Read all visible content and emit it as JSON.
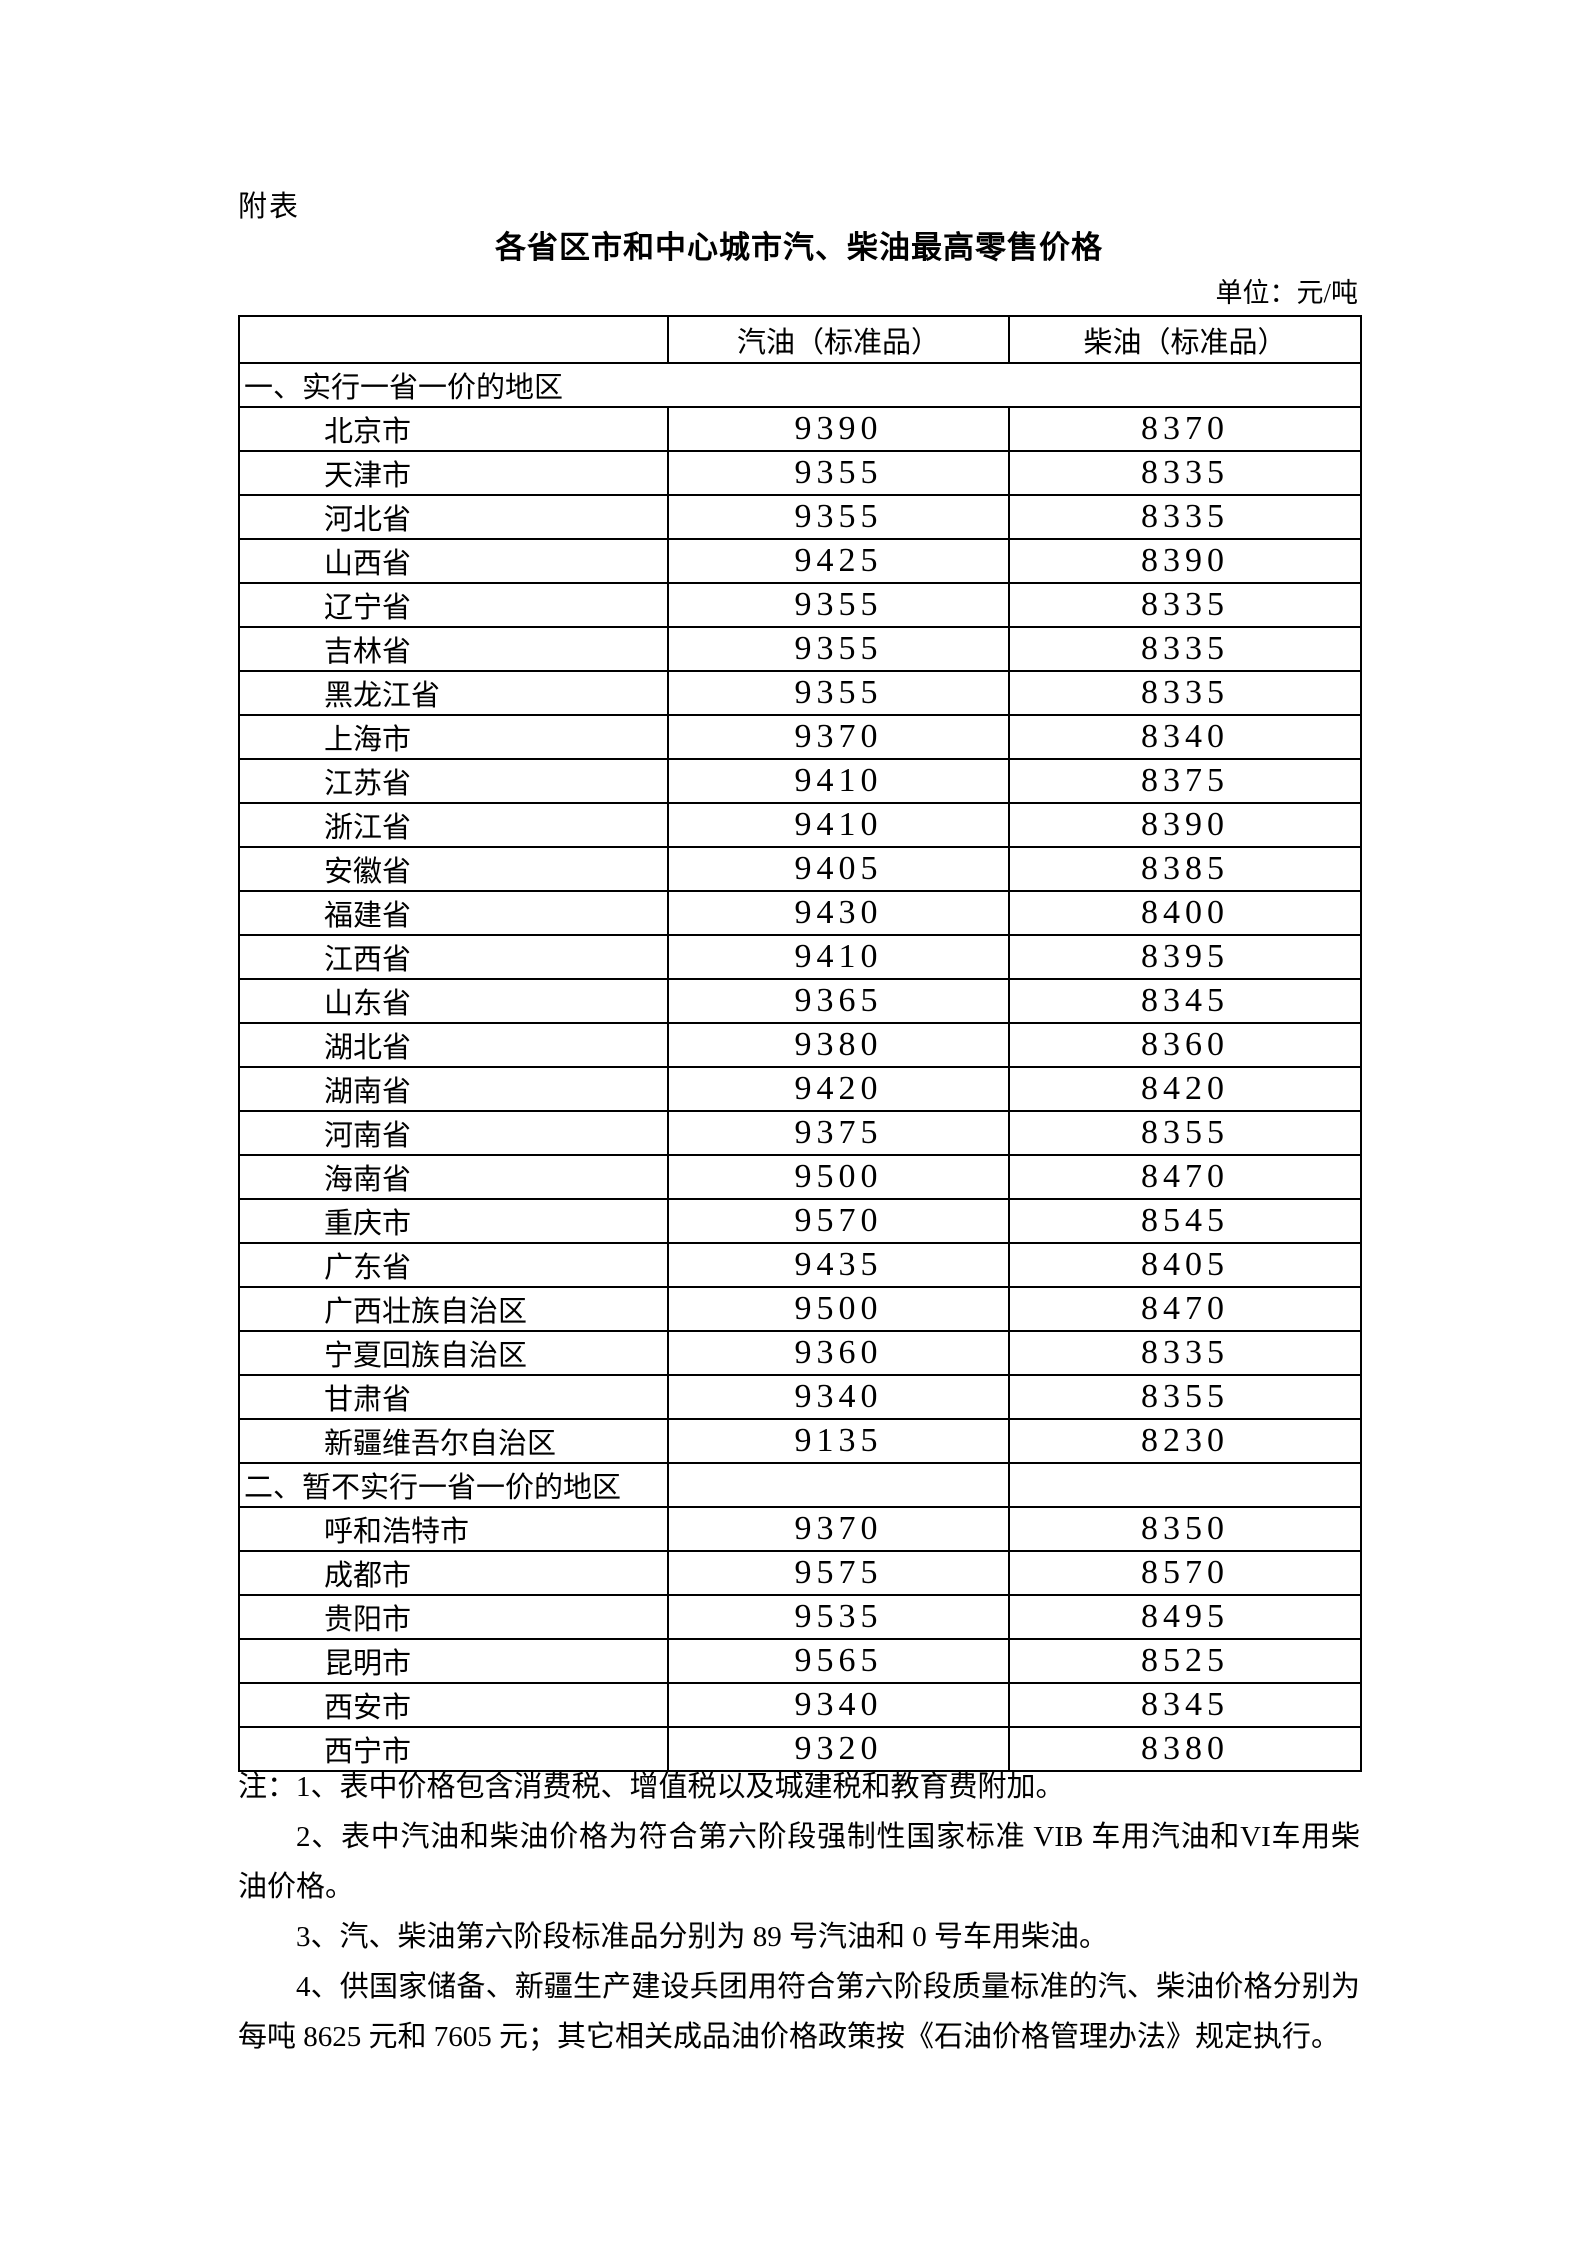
{
  "page": {
    "appendix_label": "附表",
    "title": "各省区市和中心城市汽、柴油最高零售价格",
    "unit_label": "单位：元/吨"
  },
  "table": {
    "columns": [
      "",
      "汽油（标准品）",
      "柴油（标准品）"
    ],
    "sections": [
      {
        "heading": "一、实行一省一价的地区",
        "merged": true,
        "rows": [
          [
            "北京市",
            "9390",
            "8370"
          ],
          [
            "天津市",
            "9355",
            "8335"
          ],
          [
            "河北省",
            "9355",
            "8335"
          ],
          [
            "山西省",
            "9425",
            "8390"
          ],
          [
            "辽宁省",
            "9355",
            "8335"
          ],
          [
            "吉林省",
            "9355",
            "8335"
          ],
          [
            "黑龙江省",
            "9355",
            "8335"
          ],
          [
            "上海市",
            "9370",
            "8340"
          ],
          [
            "江苏省",
            "9410",
            "8375"
          ],
          [
            "浙江省",
            "9410",
            "8390"
          ],
          [
            "安徽省",
            "9405",
            "8385"
          ],
          [
            "福建省",
            "9430",
            "8400"
          ],
          [
            "江西省",
            "9410",
            "8395"
          ],
          [
            "山东省",
            "9365",
            "8345"
          ],
          [
            "湖北省",
            "9380",
            "8360"
          ],
          [
            "湖南省",
            "9420",
            "8420"
          ],
          [
            "河南省",
            "9375",
            "8355"
          ],
          [
            "海南省",
            "9500",
            "8470"
          ],
          [
            "重庆市",
            "9570",
            "8545"
          ],
          [
            "广东省",
            "9435",
            "8405"
          ],
          [
            "广西壮族自治区",
            "9500",
            "8470"
          ],
          [
            "宁夏回族自治区",
            "9360",
            "8335"
          ],
          [
            "甘肃省",
            "9340",
            "8355"
          ],
          [
            "新疆维吾尔自治区",
            "9135",
            "8230"
          ]
        ]
      },
      {
        "heading": "二、暂不实行一省一价的地区",
        "merged": false,
        "rows": [
          [
            "呼和浩特市",
            "9370",
            "8350"
          ],
          [
            "成都市",
            "9575",
            "8570"
          ],
          [
            "贵阳市",
            "9535",
            "8495"
          ],
          [
            "昆明市",
            "9565",
            "8525"
          ],
          [
            "西安市",
            "9340",
            "8345"
          ],
          [
            "西宁市",
            "9320",
            "8380"
          ]
        ]
      }
    ]
  },
  "notes": [
    "注：1、表中价格包含消费税、增值税以及城建税和教育费附加。",
    "2、表中汽油和柴油价格为符合第六阶段强制性国家标准 VIB 车用汽油和VI车用柴油价格。",
    "3、汽、柴油第六阶段标准品分别为 89 号汽油和 0 号车用柴油。",
    "4、供国家储备、新疆生产建设兵团用符合第六阶段质量标准的汽、柴油价格分别为每吨 8625 元和 7605 元；其它相关成品油价格政策按《石油价格管理办法》规定执行。"
  ]
}
